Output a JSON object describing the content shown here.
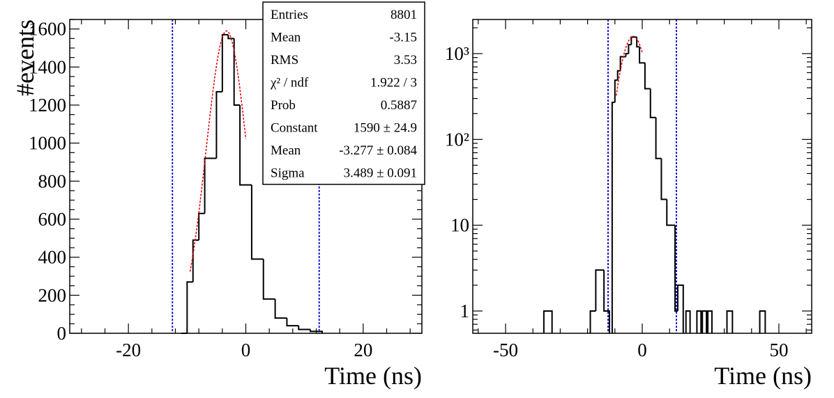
{
  "chart_data": [
    {
      "type": "histogram",
      "xlabel": "Time (ns)",
      "ylabel": "#events",
      "xlim": [
        -30,
        30
      ],
      "ylim": [
        0,
        1650
      ],
      "yscale": "linear",
      "x_ticks": [
        -20,
        0,
        20
      ],
      "x_tick_labels": [
        "-20",
        "0",
        "20"
      ],
      "y_ticks": [
        0,
        200,
        400,
        600,
        800,
        1000,
        1200,
        1400,
        1600
      ],
      "y_tick_labels": [
        "0",
        "200",
        "400",
        "600",
        "800",
        "1000",
        "1200",
        "1400",
        "1600"
      ],
      "bin_width": 2,
      "bins": [
        {
          "x0": -11,
          "x1": -10,
          "count": 0
        },
        {
          "x0": -10,
          "x1": -9,
          "count": 270
        },
        {
          "x0": -9,
          "x1": -8,
          "count": 490
        },
        {
          "x0": -8,
          "x1": -7,
          "count": 630
        },
        {
          "x0": -7,
          "x1": -6,
          "count": 920
        },
        {
          "x0": -6,
          "x1": -5,
          "count": 920
        },
        {
          "x0": -5,
          "x1": -4,
          "count": 1270
        },
        {
          "x0": -4,
          "x1": -3,
          "count": 1570
        },
        {
          "x0": -3,
          "x1": -2,
          "count": 1550
        },
        {
          "x0": -2,
          "x1": -1,
          "count": 1200
        },
        {
          "x0": -1,
          "x1": 1,
          "count": 780
        },
        {
          "x0": 1,
          "x1": 3,
          "count": 390
        },
        {
          "x0": 3,
          "x1": 5,
          "count": 180
        },
        {
          "x0": 5,
          "x1": 7,
          "count": 80
        },
        {
          "x0": 7,
          "x1": 9,
          "count": 40
        },
        {
          "x0": 9,
          "x1": 11,
          "count": 20
        },
        {
          "x0": 11,
          "x1": 13,
          "count": 10
        }
      ],
      "fit": {
        "function": "gaus",
        "constant": 1590,
        "mean": -3.277,
        "sigma": 3.489,
        "range": [
          -9.5,
          0
        ]
      },
      "cut_lines": [
        -12.5,
        12.5
      ],
      "stats_box": [
        {
          "label": "Entries",
          "value": "8801"
        },
        {
          "label": "Mean",
          "value": "-3.15"
        },
        {
          "label": "RMS",
          "value": "3.53"
        },
        {
          "label": "χ² / ndf",
          "value": "1.922 / 3"
        },
        {
          "label": "Prob",
          "value": "0.5887"
        },
        {
          "label": "Constant",
          "value": "1590 ± 24.9"
        },
        {
          "label": "Mean",
          "value": "-3.277 ± 0.084"
        },
        {
          "label": "Sigma",
          "value": "3.489 ± 0.091"
        }
      ]
    },
    {
      "type": "histogram",
      "xlabel": "Time (ns)",
      "ylabel": "",
      "xlim": [
        -62,
        62
      ],
      "ylim": [
        0.55,
        2500
      ],
      "yscale": "log",
      "x_ticks": [
        -50,
        0,
        50
      ],
      "x_tick_labels": [
        "-50",
        "0",
        "50"
      ],
      "y_ticks": [
        1,
        10,
        100,
        1000
      ],
      "y_tick_labels": [
        "1",
        "10",
        "10²",
        "10³"
      ],
      "bins": [
        {
          "x0": -36,
          "x1": -33,
          "count": 1
        },
        {
          "x0": -19,
          "x1": -17,
          "count": 1
        },
        {
          "x0": -17,
          "x1": -14,
          "count": 3
        },
        {
          "x0": -14,
          "x1": -12,
          "count": 1
        },
        {
          "x0": -11,
          "x1": -10,
          "count": 270
        },
        {
          "x0": -10,
          "x1": -9,
          "count": 490
        },
        {
          "x0": -9,
          "x1": -8,
          "count": 630
        },
        {
          "x0": -8,
          "x1": -6,
          "count": 920
        },
        {
          "x0": -6,
          "x1": -5,
          "count": 1000
        },
        {
          "x0": -5,
          "x1": -4,
          "count": 1270
        },
        {
          "x0": -4,
          "x1": -2,
          "count": 1560
        },
        {
          "x0": -2,
          "x1": -1,
          "count": 1200
        },
        {
          "x0": -1,
          "x1": 1,
          "count": 780
        },
        {
          "x0": 1,
          "x1": 3,
          "count": 390
        },
        {
          "x0": 3,
          "x1": 5,
          "count": 180
        },
        {
          "x0": 5,
          "x1": 7,
          "count": 60
        },
        {
          "x0": 7,
          "x1": 9,
          "count": 20
        },
        {
          "x0": 9,
          "x1": 11,
          "count": 10
        },
        {
          "x0": 11,
          "x1": 12,
          "count": 10
        },
        {
          "x0": 12,
          "x1": 13,
          "count": 1
        },
        {
          "x0": 13,
          "x1": 15,
          "count": 2
        },
        {
          "x0": 16,
          "x1": 17.5,
          "count": 1
        },
        {
          "x0": 20,
          "x1": 21.5,
          "count": 1
        },
        {
          "x0": 22,
          "x1": 23.5,
          "count": 1
        },
        {
          "x0": 24,
          "x1": 25.5,
          "count": 1
        },
        {
          "x0": 31,
          "x1": 33,
          "count": 1
        },
        {
          "x0": 43,
          "x1": 45,
          "count": 1
        }
      ],
      "fit": {
        "function": "gaus",
        "constant": 1590,
        "mean": -3.277,
        "sigma": 3.489,
        "range": [
          -9.5,
          0
        ]
      },
      "cut_lines": [
        -12.5,
        12.5
      ]
    }
  ]
}
